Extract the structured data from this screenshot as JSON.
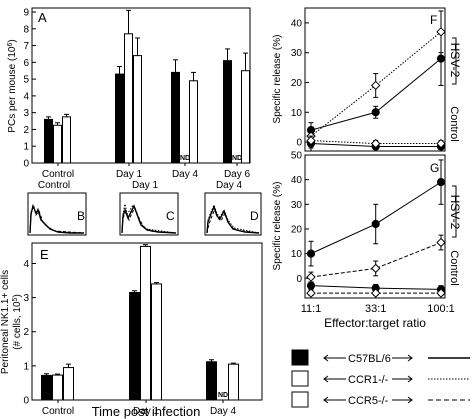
{
  "panel_labels": {
    "A": "A",
    "B": "B",
    "C": "C",
    "D": "D",
    "E": "E",
    "F": "F",
    "G": "G"
  },
  "histogram_titles": [
    "Control",
    "Day 1",
    "Day 4"
  ],
  "x_axis_bottom_title": "Time post infection",
  "effector_axis_title": "Effector:target ratio",
  "nd_label": "ND",
  "legend": [
    {
      "label": "C57BL/6",
      "fill": "black",
      "line": "solid"
    },
    {
      "label": "CCR1-/-",
      "fill": "white",
      "line": "dotted"
    },
    {
      "label": "CCR5-/-",
      "fill": "white",
      "line": "dashed"
    }
  ],
  "colors": {
    "black": "#000000",
    "white": "#ffffff"
  },
  "chart_data": [
    {
      "id": "A",
      "type": "bar",
      "ylabel": "PCs per mouse (10^6)",
      "ylim": [
        0,
        9
      ],
      "yticks": [
        0,
        1,
        2,
        3,
        4,
        5,
        6,
        7,
        8,
        9
      ],
      "categories": [
        "Control",
        "Day 1",
        "Day 4",
        "Day 6"
      ],
      "series": [
        {
          "name": "C57BL/6",
          "values": [
            2.6,
            5.3,
            5.4,
            6.1
          ],
          "errors": [
            0.15,
            0.45,
            0.75,
            0.7
          ]
        },
        {
          "name": "CCR1-/-",
          "values": [
            2.25,
            7.7,
            null,
            null
          ],
          "errors": [
            0.15,
            1.4,
            null,
            null
          ]
        },
        {
          "name": "CCR5-/-",
          "values": [
            2.75,
            6.4,
            4.9,
            5.5
          ],
          "errors": [
            0.15,
            1.05,
            0.5,
            1.05
          ]
        }
      ],
      "annotations": [
        {
          "text": "ND",
          "category": "Day 4"
        },
        {
          "text": "ND",
          "category": "Day 6"
        }
      ]
    },
    {
      "id": "E",
      "type": "bar",
      "ylabel": "Peritoneal NK1.1+ cells (# cells, 10^5)",
      "ylim": [
        0,
        4.6
      ],
      "yticks": [
        0,
        1,
        2,
        3,
        4
      ],
      "categories": [
        "Control",
        "Day 1",
        "Day 4"
      ],
      "series": [
        {
          "name": "C57BL/6",
          "values": [
            0.72,
            3.15,
            1.12
          ],
          "errors": [
            0.05,
            0.05,
            0.06
          ]
        },
        {
          "name": "CCR1-/-",
          "values": [
            0.73,
            4.5,
            null
          ],
          "errors": [
            0.03,
            0.05,
            null
          ]
        },
        {
          "name": "CCR5-/-",
          "values": [
            0.95,
            3.4,
            1.05
          ],
          "errors": [
            0.1,
            0.04,
            0.03
          ]
        }
      ],
      "annotations": [
        {
          "text": "ND",
          "category": "Day 4"
        }
      ]
    },
    {
      "id": "F",
      "type": "line",
      "ylabel": "Specific release (%)",
      "ylim": [
        -3,
        45
      ],
      "yticks": [
        0,
        10,
        20,
        30,
        40
      ],
      "x": [
        11,
        33,
        100
      ],
      "xscale": "log",
      "series": [
        {
          "name": "C57BL/6 HSV-2",
          "marker": "filled-circle",
          "line": "solid",
          "values": [
            4,
            10,
            28
          ],
          "errors": [
            2.5,
            2,
            9
          ]
        },
        {
          "name": "CCR1-/- HSV-2",
          "marker": "open-diamond",
          "line": "dotted",
          "values": [
            2,
            19,
            37
          ],
          "errors": [
            3,
            4,
            7
          ]
        },
        {
          "name": "C57BL/6 Control",
          "marker": "filled-circle",
          "line": "solid",
          "values": [
            -0.5,
            -1.5,
            -1.5
          ],
          "errors": [
            1.5,
            1,
            1
          ]
        },
        {
          "name": "CCR1-/- Control",
          "marker": "open-diamond",
          "line": "dotted",
          "values": [
            0.5,
            -0.5,
            -0.5
          ],
          "errors": [
            1.5,
            1,
            1
          ]
        }
      ],
      "annotations": [
        "HSV-2",
        "Control"
      ]
    },
    {
      "id": "G",
      "type": "line",
      "ylabel": "Specific release (%)",
      "ylim": [
        -8,
        50
      ],
      "yticks": [
        0,
        10,
        20,
        30,
        40,
        50
      ],
      "x": [
        11,
        33,
        100
      ],
      "xscale": "log",
      "xticks": [
        "11:1",
        "33:1",
        "100:1"
      ],
      "series": [
        {
          "name": "C57BL/6 HSV-2",
          "marker": "filled-circle",
          "line": "solid",
          "values": [
            10,
            22,
            39
          ],
          "errors": [
            5,
            8,
            9
          ]
        },
        {
          "name": "CCR5-/- HSV-2",
          "marker": "open-diamond",
          "line": "dashed",
          "values": [
            0.5,
            4,
            14.5
          ],
          "errors": [
            2,
            3,
            3
          ]
        },
        {
          "name": "C57BL/6 Control",
          "marker": "filled-circle",
          "line": "solid",
          "values": [
            -3,
            -4,
            -4.5
          ],
          "errors": [
            1.5,
            1.5,
            1.5
          ]
        },
        {
          "name": "CCR5-/- Control",
          "marker": "open-diamond",
          "line": "dashed",
          "values": [
            -6,
            -6,
            -6
          ],
          "errors": [
            1,
            1,
            1
          ]
        }
      ],
      "annotations": [
        "HSV-2",
        "Control"
      ]
    }
  ]
}
